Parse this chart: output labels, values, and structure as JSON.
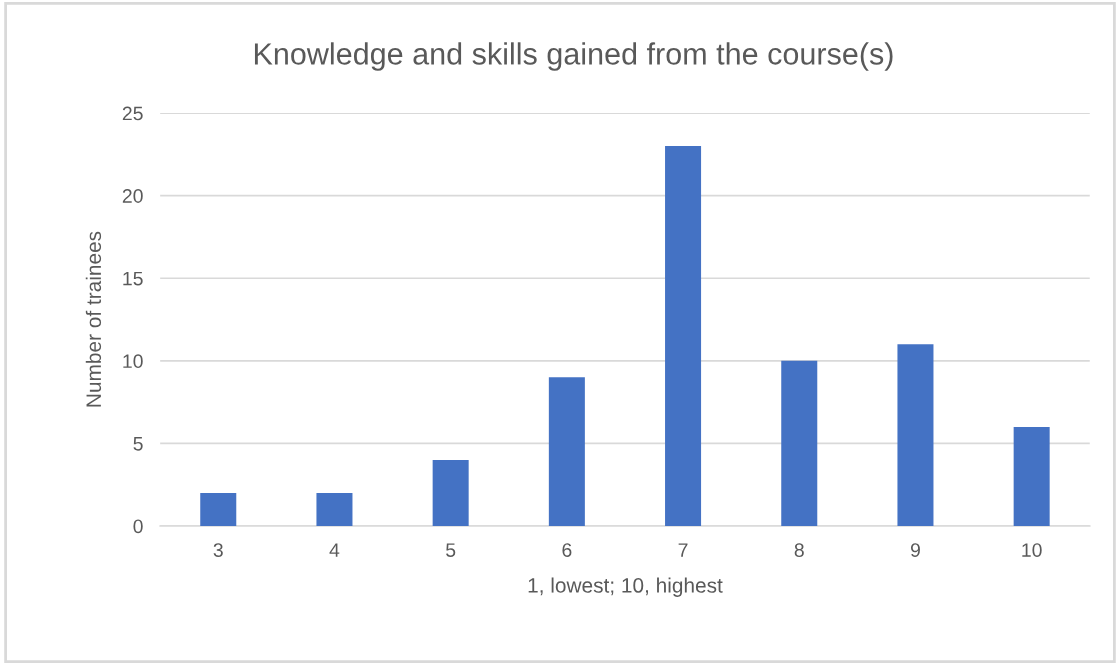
{
  "chart_data": {
    "type": "bar",
    "title": "Knowledge and skills gained from the course(s)",
    "xlabel": "1, lowest; 10, highest",
    "ylabel": "Number of trainees",
    "categories": [
      "3",
      "4",
      "5",
      "6",
      "7",
      "8",
      "9",
      "10"
    ],
    "values": [
      2,
      2,
      4,
      9,
      23,
      10,
      11,
      6
    ],
    "color": "#4472c4",
    "ylim": [
      0,
      25
    ],
    "yticks": [
      0,
      5,
      10,
      15,
      20,
      25
    ],
    "grid": "y"
  }
}
